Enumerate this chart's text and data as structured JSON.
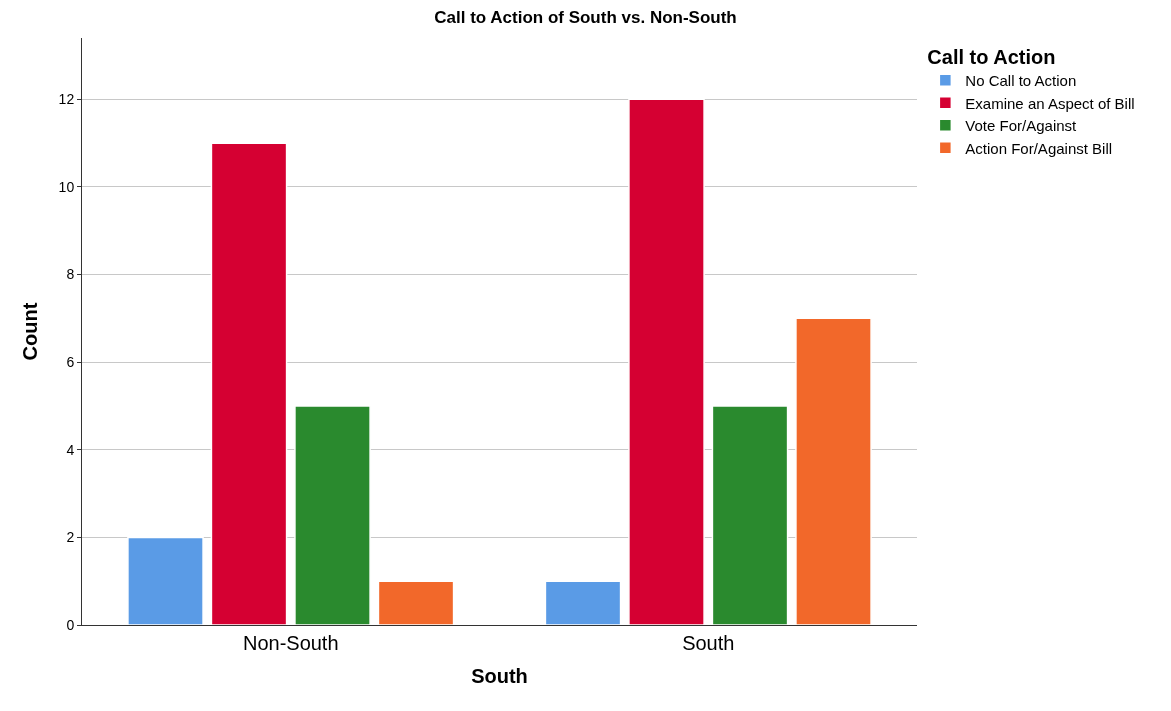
{
  "chart_data": {
    "type": "bar",
    "title": "Call to Action of South vs. Non-South",
    "xlabel": "South",
    "ylabel": "Count",
    "legend_title": "Call to Action",
    "categories": [
      "Non-South",
      "South"
    ],
    "series": [
      {
        "name": "No Call to Action",
        "color": "#5a9be6",
        "values": [
          2,
          1
        ]
      },
      {
        "name": "Examine an Aspect of Bill",
        "color": "#d50032",
        "values": [
          11,
          12
        ]
      },
      {
        "name": "Vote For/Against",
        "color": "#2a8a2e",
        "values": [
          5,
          5
        ]
      },
      {
        "name": "Action For/Against Bill",
        "color": "#f2682a",
        "values": [
          1,
          7
        ]
      }
    ],
    "ylim": [
      0,
      13.4
    ],
    "yticks": [
      0,
      2,
      4,
      6,
      8,
      10,
      12
    ],
    "grid": "y",
    "legend": "top right"
  }
}
